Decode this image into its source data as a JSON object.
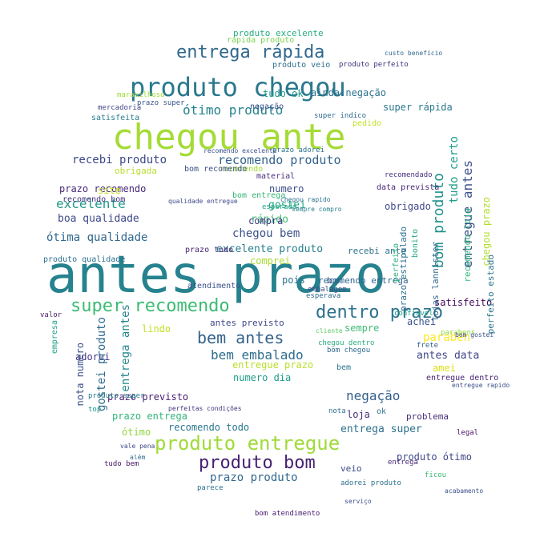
{
  "colors": {
    "background": "#ffffff",
    "palette": [
      "#440154",
      "#472d7b",
      "#3b528b",
      "#2c728e",
      "#21918c",
      "#28ae80",
      "#5ec962",
      "#addc30",
      "#fde725"
    ]
  },
  "words": [
    {
      "text": "antes prazo",
      "c": "#26828e"
    },
    {
      "text": "chegou ante",
      "c": "#a5db36"
    },
    {
      "text": "produto chegou",
      "c": "#2a788e"
    },
    {
      "text": "entrega rápida",
      "c": "#31688e"
    },
    {
      "text": "produto entregue",
      "c": "#a0da39"
    },
    {
      "text": "produto bom",
      "c": "#482173"
    },
    {
      "text": "super recomendo",
      "c": "#3dbc74"
    },
    {
      "text": "dentro prazo",
      "c": "#2c728e"
    },
    {
      "text": "bem antes",
      "c": "#34618d"
    },
    {
      "text": "ótimo produto",
      "c": "#25838e"
    },
    {
      "text": "recomendo produto",
      "c": "#33638d"
    },
    {
      "text": "recebi produto",
      "c": "#3e4989"
    },
    {
      "text": "bom produto",
      "c": "#21918c"
    },
    {
      "text": "entregue antes",
      "c": "#3b528b"
    },
    {
      "text": "excelente",
      "c": "#1f9a8a"
    },
    {
      "text": "ótima qualidade",
      "c": "#31688e"
    },
    {
      "text": "boa qualidade",
      "c": "#3e4a89"
    },
    {
      "text": "prazo recomendo",
      "c": "#482878"
    },
    {
      "text": "recomendo bom",
      "c": "#46337e"
    },
    {
      "text": "adorei",
      "c": "#443a83"
    },
    {
      "text": "obrigada",
      "c": "#b5de2b"
    },
    {
      "text": "rápido",
      "c": "#3dbc74"
    },
    {
      "text": "gostei",
      "c": "#22a785"
    },
    {
      "text": "chegou bem",
      "c": "#3b528b"
    },
    {
      "text": "excelente produto",
      "c": "#277f8e"
    },
    {
      "text": "comprei",
      "c": "#a8db34"
    },
    {
      "text": "obrigado",
      "c": "#3e4989"
    },
    {
      "text": "entregue prazo",
      "c": "#b8de29"
    },
    {
      "text": "bem embalado",
      "c": "#2e6e8e"
    },
    {
      "text": "antes previsto",
      "c": "#3f4889"
    },
    {
      "text": "parabén",
      "c": "#fde725"
    },
    {
      "text": "antes data",
      "c": "#404688"
    },
    {
      "text": "amei",
      "c": "#d8e219"
    },
    {
      "text": "negação",
      "c": "#34608d"
    },
    {
      "text": "loja",
      "c": "#46307e"
    },
    {
      "text": "entrega super",
      "c": "#2d708e"
    },
    {
      "text": "prazo entrega",
      "c": "#31b57b"
    },
    {
      "text": "prazo produto",
      "c": "#31688e"
    },
    {
      "text": "tudo ok",
      "c": "#1f998a"
    },
    {
      "text": "ainda negação",
      "c": "#2d718e"
    },
    {
      "text": "produto excelente",
      "c": "#27ad81"
    },
    {
      "text": "super rápida",
      "c": "#2a788e"
    },
    {
      "text": "satisfeito",
      "c": "#46085c"
    },
    {
      "text": "lindo",
      "c": "#c2df23"
    },
    {
      "text": "recomendo",
      "c": "#a2da37"
    },
    {
      "text": "nota numero",
      "c": "#3b528b"
    },
    {
      "text": "gostei produto",
      "c": "#2f6c8e"
    },
    {
      "text": "entrega antes",
      "c": "#23888e"
    },
    {
      "text": "tudo certo",
      "c": "#1f9e89"
    },
    {
      "text": "prazo previsto",
      "c": "#481f70"
    },
    {
      "text": "recomendo todo",
      "c": "#2a768e"
    },
    {
      "text": "ótimo",
      "c": "#90d743"
    },
    {
      "text": "sempre",
      "c": "#3fbc73"
    },
    {
      "text": "bom recomendo",
      "c": "#3c4f8a"
    },
    {
      "text": "compra",
      "c": "#443983"
    },
    {
      "text": "site",
      "c": "#c8e020"
    },
    {
      "text": "bom",
      "c": "#38588c"
    },
    {
      "text": "achei",
      "c": "#39568c"
    },
    {
      "text": "pois",
      "c": "#2b748e"
    },
    {
      "text": "numero dia",
      "c": "#1f9e89"
    },
    {
      "text": "numero",
      "c": "#3e4c8a"
    },
    {
      "text": "bom entrega",
      "c": "#35b779"
    },
    {
      "text": "recebi ante",
      "c": "#2c728e"
    },
    {
      "text": "prazo tudo",
      "c": "#482475"
    },
    {
      "text": "produto ótimo",
      "c": "#3f4788"
    },
    {
      "text": "problema",
      "c": "#472c7a"
    },
    {
      "text": "recomendo loja",
      "c": "#2fb47c"
    },
    {
      "text": "chegou prazo",
      "c": "#b2dd2d"
    },
    {
      "text": "perfeito estado",
      "c": "#2a788e"
    },
    {
      "text": "data prevista",
      "c": "#482677"
    },
    {
      "text": "atendimento",
      "c": "#3b528b"
    },
    {
      "text": "produto qualidade",
      "c": "#2c718e"
    },
    {
      "text": "recomendo entrega",
      "c": "#31678e"
    },
    {
      "text": "entregue dentro",
      "c": "#482576"
    },
    {
      "text": "prazo super",
      "c": "#3a538b"
    },
    {
      "text": "produto veio",
      "c": "#2e6f8e"
    },
    {
      "text": "rápida produto",
      "c": "#7ad151"
    },
    {
      "text": "negação",
      "c": "#3b528b"
    },
    {
      "text": "bem",
      "c": "#2a768e"
    },
    {
      "text": "veio",
      "c": "#3e4a89"
    },
    {
      "text": "empresa",
      "c": "#1fa187"
    },
    {
      "text": "valor",
      "c": "#481b6d"
    },
    {
      "text": "esperado",
      "c": "#20a386"
    },
    {
      "text": "lojas lannister",
      "c": "#31688e"
    },
    {
      "text": "prazo adorei",
      "c": "#2c738e"
    },
    {
      "text": "material",
      "c": "#472f7d"
    },
    {
      "text": "confiavel",
      "c": "#1fa088"
    },
    {
      "text": "bonito",
      "c": "#22a884"
    },
    {
      "text": "perfeito",
      "c": "#29af7f"
    },
    {
      "text": "satisfeita",
      "c": "#277e8e"
    },
    {
      "text": "recomendado",
      "c": "#46327e"
    },
    {
      "text": "prazo estipulado",
      "c": "#2d708e"
    },
    {
      "text": "maravilhoso",
      "c": "#a0da39"
    },
    {
      "text": "mercadoria",
      "c": "#404688"
    },
    {
      "text": "embalagem",
      "c": "#3d4e8a"
    },
    {
      "text": "frete",
      "c": "#34618d"
    },
    {
      "text": "bom chegou",
      "c": "#306a8e"
    },
    {
      "text": "esperava",
      "c": "#2f6b8e"
    },
    {
      "text": "cliente",
      "c": "#5ec962"
    },
    {
      "text": "chegou dentro",
      "c": "#27ad81"
    },
    {
      "text": "tudo bem",
      "c": "#481668"
    },
    {
      "text": "produto super",
      "c": "#297b8e"
    },
    {
      "text": "entregue rapido",
      "c": "#3c4f8a"
    },
    {
      "text": "vale pena",
      "c": "#3e4989"
    },
    {
      "text": "adorei produto",
      "c": "#2d718e"
    },
    {
      "text": "bom atendimento",
      "c": "#482173"
    },
    {
      "text": "produto perfeito",
      "c": "#46307e"
    },
    {
      "text": "custo benefício",
      "c": "#31668e"
    },
    {
      "text": "qualidade entregue",
      "c": "#3e4989"
    },
    {
      "text": "chegou rapido",
      "c": "#2d708e"
    },
    {
      "text": "super indico",
      "c": "#2f6b8e"
    },
    {
      "text": "sempre compro",
      "c": "#277f8e"
    },
    {
      "text": "recomendo excelente",
      "c": "#3b528b"
    },
    {
      "text": "pedido",
      "c": "#c2df23"
    },
    {
      "text": "entrega",
      "c": "#482878"
    },
    {
      "text": "parabens",
      "c": "#93d741"
    },
    {
      "text": "top",
      "c": "#1f9e89"
    },
    {
      "text": "legal",
      "c": "#471063"
    },
    {
      "text": "acabamento",
      "c": "#3b528b"
    },
    {
      "text": "serviço",
      "c": "#3b528b"
    },
    {
      "text": "nota",
      "c": "#2c728e"
    },
    {
      "text": "bom gostei",
      "c": "#3b528b"
    },
    {
      "text": "perfeitas condições",
      "c": "#46327e"
    },
    {
      "text": "além",
      "c": "#306a8e"
    },
    {
      "text": "parece",
      "c": "#2c728e"
    },
    {
      "text": "ficou",
      "c": "#3dbc74"
    },
    {
      "text": "ok",
      "c": "#2c728e"
    }
  ]
}
